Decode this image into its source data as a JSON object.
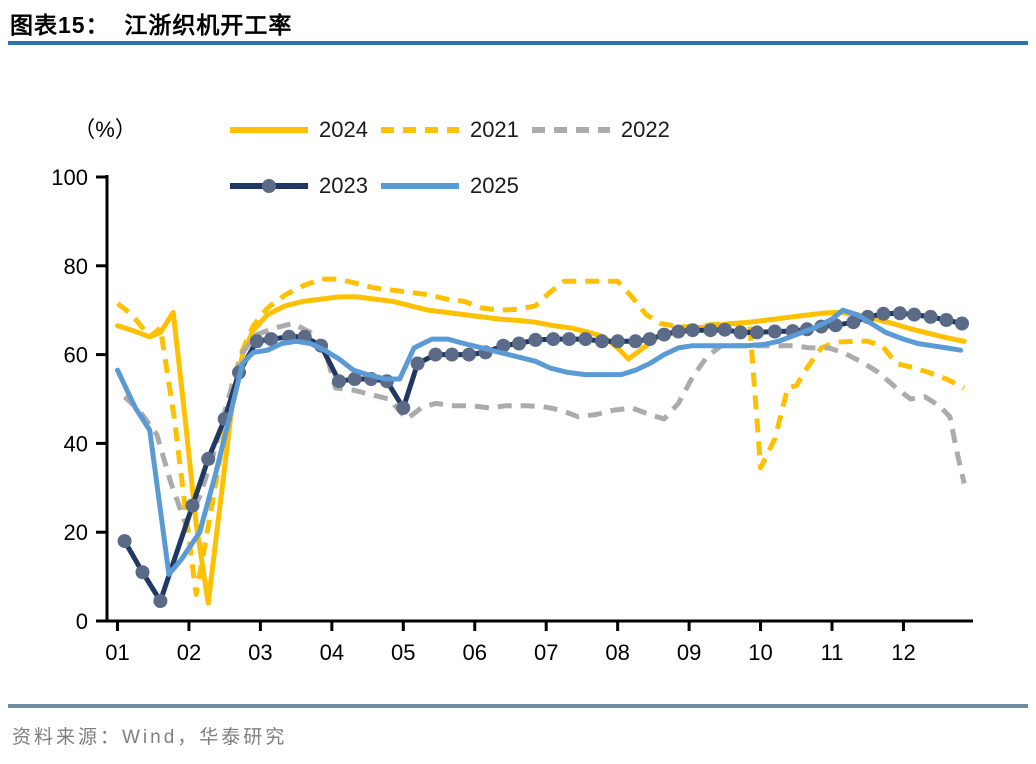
{
  "header": {
    "title": "图表15：  江浙织机开工率"
  },
  "footer": {
    "source": "资料来源：Wind，华泰研究"
  },
  "colors": {
    "accent_rule_top": "#2E74B5",
    "accent_rule_bottom": "#6F8CA3",
    "axis": "#000000",
    "yellow": "#FFC000",
    "gray": "#ABABAB",
    "navy": "#1F3864",
    "marker_slate": "#5A6A87",
    "light_blue": "#5B9BD5"
  },
  "chart_data": {
    "type": "line",
    "title": "江浙织机开工率",
    "unit_label": "（%）",
    "grid": false,
    "legend_position": "top",
    "x_axis": {
      "ticks": [
        "01",
        "02",
        "03",
        "04",
        "05",
        "06",
        "07",
        "08",
        "09",
        "10",
        "11",
        "12"
      ],
      "range": [
        0.85,
        12.95
      ]
    },
    "y_axis": {
      "ticks": [
        0,
        20,
        40,
        60,
        80,
        100
      ],
      "range": [
        0,
        100
      ]
    },
    "legend_rows": [
      [
        "2024",
        "2021",
        "2022"
      ],
      [
        "2023",
        "2025"
      ]
    ],
    "series": [
      {
        "name": "2024",
        "color": "#FFC000",
        "style": "solid",
        "marker": null,
        "points": [
          [
            1.0,
            66.5
          ],
          [
            1.2,
            65.5
          ],
          [
            1.45,
            64
          ],
          [
            1.6,
            65
          ],
          [
            1.78,
            69.5
          ],
          [
            1.95,
            45
          ],
          [
            2.1,
            22
          ],
          [
            2.27,
            4
          ],
          [
            2.45,
            28
          ],
          [
            2.6,
            48
          ],
          [
            2.75,
            60
          ],
          [
            2.9,
            65.5
          ],
          [
            3.1,
            69
          ],
          [
            3.35,
            71
          ],
          [
            3.6,
            72
          ],
          [
            3.85,
            72.5
          ],
          [
            4.1,
            73
          ],
          [
            4.35,
            73
          ],
          [
            4.6,
            72.5
          ],
          [
            4.85,
            72
          ],
          [
            5.1,
            71
          ],
          [
            5.35,
            70
          ],
          [
            5.6,
            69.5
          ],
          [
            5.85,
            69
          ],
          [
            6.1,
            68.5
          ],
          [
            6.35,
            68
          ],
          [
            6.6,
            67.7
          ],
          [
            6.85,
            67.3
          ],
          [
            7.1,
            66.5
          ],
          [
            7.35,
            66
          ],
          [
            7.6,
            65
          ],
          [
            7.8,
            64
          ],
          [
            8.0,
            61.5
          ],
          [
            8.15,
            59
          ],
          [
            8.4,
            62
          ],
          [
            8.6,
            64.5
          ],
          [
            8.85,
            65.3
          ],
          [
            9.1,
            66
          ],
          [
            9.35,
            66.5
          ],
          [
            9.6,
            67
          ],
          [
            9.85,
            67.3
          ],
          [
            10.1,
            67.8
          ],
          [
            10.35,
            68.3
          ],
          [
            10.6,
            68.8
          ],
          [
            10.85,
            69.3
          ],
          [
            11.1,
            69.5
          ],
          [
            11.35,
            69
          ],
          [
            11.6,
            68
          ],
          [
            11.85,
            67
          ],
          [
            12.1,
            65.8
          ],
          [
            12.35,
            64.8
          ],
          [
            12.6,
            63.8
          ],
          [
            12.85,
            63
          ]
        ]
      },
      {
        "name": "2021",
        "color": "#FFC000",
        "style": "dashed",
        "marker": null,
        "points": [
          [
            1.0,
            71.5
          ],
          [
            1.2,
            69
          ],
          [
            1.45,
            64
          ],
          [
            1.6,
            66
          ],
          [
            1.8,
            45
          ],
          [
            1.95,
            25
          ],
          [
            2.1,
            6
          ],
          [
            2.3,
            24
          ],
          [
            2.45,
            38
          ],
          [
            2.6,
            53
          ],
          [
            2.75,
            61
          ],
          [
            2.9,
            66.5
          ],
          [
            3.1,
            70.5
          ],
          [
            3.35,
            73.5
          ],
          [
            3.6,
            75.5
          ],
          [
            3.85,
            77
          ],
          [
            4.1,
            77
          ],
          [
            4.35,
            76
          ],
          [
            4.6,
            75
          ],
          [
            4.85,
            74.5
          ],
          [
            5.1,
            74
          ],
          [
            5.35,
            73.5
          ],
          [
            5.6,
            72.5
          ],
          [
            5.85,
            72
          ],
          [
            6.1,
            70.5
          ],
          [
            6.35,
            70
          ],
          [
            6.6,
            70.2
          ],
          [
            6.85,
            71
          ],
          [
            7.05,
            74
          ],
          [
            7.25,
            76.5
          ],
          [
            7.5,
            76.5
          ],
          [
            7.75,
            76.5
          ],
          [
            8.0,
            76.5
          ],
          [
            8.2,
            73
          ],
          [
            8.4,
            69
          ],
          [
            8.6,
            67
          ],
          [
            8.85,
            66.3
          ],
          [
            9.1,
            66.3
          ],
          [
            9.35,
            66.8
          ],
          [
            9.6,
            67
          ],
          [
            9.85,
            66.5
          ],
          [
            10.0,
            34.5
          ],
          [
            10.2,
            41
          ],
          [
            10.38,
            52.5
          ],
          [
            10.5,
            53
          ],
          [
            10.65,
            57
          ],
          [
            10.85,
            61.5
          ],
          [
            11.05,
            62.8
          ],
          [
            11.3,
            63
          ],
          [
            11.5,
            63
          ],
          [
            11.7,
            62
          ],
          [
            11.9,
            58
          ],
          [
            12.15,
            57
          ],
          [
            12.35,
            56
          ],
          [
            12.6,
            54.5
          ],
          [
            12.85,
            52.5
          ]
        ]
      },
      {
        "name": "2022",
        "color": "#ABABAB",
        "style": "dashed",
        "marker": null,
        "points": [
          [
            1.1,
            50.5
          ],
          [
            1.3,
            47.5
          ],
          [
            1.55,
            42
          ],
          [
            1.75,
            31
          ],
          [
            1.95,
            22
          ],
          [
            2.15,
            28
          ],
          [
            2.35,
            38
          ],
          [
            2.55,
            50
          ],
          [
            2.75,
            60.5
          ],
          [
            2.95,
            64.5
          ],
          [
            3.2,
            66
          ],
          [
            3.45,
            67
          ],
          [
            3.7,
            65
          ],
          [
            3.9,
            61.5
          ],
          [
            4.05,
            52.5
          ],
          [
            4.3,
            52
          ],
          [
            4.55,
            51
          ],
          [
            4.8,
            50
          ],
          [
            5.05,
            45.5
          ],
          [
            5.25,
            48
          ],
          [
            5.45,
            49
          ],
          [
            5.7,
            48.5
          ],
          [
            5.95,
            48.5
          ],
          [
            6.2,
            48
          ],
          [
            6.45,
            48.5
          ],
          [
            6.7,
            48.5
          ],
          [
            6.95,
            48.3
          ],
          [
            7.2,
            47.5
          ],
          [
            7.45,
            46
          ],
          [
            7.7,
            46.5
          ],
          [
            7.95,
            47.5
          ],
          [
            8.2,
            48
          ],
          [
            8.45,
            46.5
          ],
          [
            8.65,
            45.5
          ],
          [
            8.85,
            49
          ],
          [
            9.05,
            55
          ],
          [
            9.25,
            59.5
          ],
          [
            9.45,
            62
          ],
          [
            9.7,
            62
          ],
          [
            9.95,
            62
          ],
          [
            10.2,
            62
          ],
          [
            10.45,
            62
          ],
          [
            10.7,
            61.5
          ],
          [
            10.95,
            61.5
          ],
          [
            11.15,
            60.5
          ],
          [
            11.4,
            58.5
          ],
          [
            11.65,
            56
          ],
          [
            11.9,
            52.5
          ],
          [
            12.1,
            50
          ],
          [
            12.3,
            50.5
          ],
          [
            12.5,
            48.5
          ],
          [
            12.65,
            46
          ],
          [
            12.75,
            38
          ],
          [
            12.85,
            31
          ]
        ]
      },
      {
        "name": "2023",
        "color": "#1F3864",
        "style": "solid",
        "marker": {
          "shape": "circle",
          "color": "#5A6A87"
        },
        "points": [
          [
            1.1,
            18
          ],
          [
            1.35,
            11
          ],
          [
            1.6,
            4.5
          ],
          [
            2.05,
            26
          ],
          [
            2.27,
            36.5
          ],
          [
            2.5,
            45.5
          ],
          [
            2.7,
            56
          ],
          [
            2.95,
            63
          ],
          [
            3.15,
            63.5
          ],
          [
            3.4,
            64
          ],
          [
            3.62,
            64
          ],
          [
            3.85,
            62
          ],
          [
            4.1,
            54
          ],
          [
            4.32,
            54.5
          ],
          [
            4.55,
            54.5
          ],
          [
            4.77,
            54
          ],
          [
            5.0,
            48
          ],
          [
            5.2,
            58
          ],
          [
            5.45,
            60
          ],
          [
            5.68,
            60
          ],
          [
            5.92,
            60
          ],
          [
            6.15,
            60.5
          ],
          [
            6.4,
            62
          ],
          [
            6.62,
            62.5
          ],
          [
            6.85,
            63.3
          ],
          [
            7.1,
            63.5
          ],
          [
            7.32,
            63.5
          ],
          [
            7.55,
            63.5
          ],
          [
            7.78,
            63
          ],
          [
            8.0,
            63
          ],
          [
            8.25,
            63
          ],
          [
            8.45,
            63.5
          ],
          [
            8.65,
            64.5
          ],
          [
            8.85,
            65.2
          ],
          [
            9.05,
            65.5
          ],
          [
            9.3,
            65.5
          ],
          [
            9.5,
            65.6
          ],
          [
            9.72,
            65
          ],
          [
            9.95,
            65
          ],
          [
            10.2,
            65.2
          ],
          [
            10.45,
            65.3
          ],
          [
            10.65,
            65.7
          ],
          [
            10.85,
            66.3
          ],
          [
            11.05,
            66.6
          ],
          [
            11.3,
            67.3
          ],
          [
            11.5,
            68.5
          ],
          [
            11.72,
            69.2
          ],
          [
            11.95,
            69.3
          ],
          [
            12.15,
            69
          ],
          [
            12.38,
            68.5
          ],
          [
            12.6,
            67.8
          ],
          [
            12.82,
            67
          ]
        ]
      },
      {
        "name": "2025",
        "color": "#5B9BD5",
        "style": "solid",
        "marker": null,
        "points": [
          [
            1.0,
            56.5
          ],
          [
            1.25,
            48
          ],
          [
            1.45,
            43
          ],
          [
            1.6,
            25
          ],
          [
            1.72,
            10.5
          ],
          [
            1.9,
            14
          ],
          [
            2.15,
            20
          ],
          [
            2.37,
            33
          ],
          [
            2.57,
            46
          ],
          [
            2.75,
            58
          ],
          [
            2.9,
            60.5
          ],
          [
            3.1,
            61
          ],
          [
            3.3,
            62.5
          ],
          [
            3.5,
            63
          ],
          [
            3.7,
            62.5
          ],
          [
            3.9,
            61
          ],
          [
            4.1,
            59
          ],
          [
            4.3,
            56.5
          ],
          [
            4.5,
            55.5
          ],
          [
            4.75,
            54.5
          ],
          [
            4.95,
            54.5
          ],
          [
            5.15,
            61.5
          ],
          [
            5.4,
            63.5
          ],
          [
            5.62,
            63.5
          ],
          [
            5.85,
            62.5
          ],
          [
            6.1,
            61.5
          ],
          [
            6.35,
            60.5
          ],
          [
            6.6,
            59.5
          ],
          [
            6.85,
            58.5
          ],
          [
            7.05,
            57
          ],
          [
            7.3,
            56
          ],
          [
            7.55,
            55.5
          ],
          [
            7.8,
            55.5
          ],
          [
            8.05,
            55.5
          ],
          [
            8.25,
            56.5
          ],
          [
            8.45,
            58
          ],
          [
            8.65,
            60
          ],
          [
            8.85,
            61.5
          ],
          [
            9.05,
            62
          ],
          [
            9.3,
            62
          ],
          [
            9.55,
            62
          ],
          [
            9.8,
            62
          ],
          [
            10.05,
            62.3
          ],
          [
            10.25,
            63
          ],
          [
            10.5,
            64.5
          ],
          [
            10.75,
            66
          ],
          [
            11.0,
            68
          ],
          [
            11.15,
            70
          ],
          [
            11.35,
            69
          ],
          [
            11.55,
            67
          ],
          [
            11.75,
            65
          ],
          [
            12.0,
            63.5
          ],
          [
            12.2,
            62.5
          ],
          [
            12.4,
            62
          ],
          [
            12.6,
            61.5
          ],
          [
            12.8,
            61
          ]
        ]
      }
    ]
  }
}
